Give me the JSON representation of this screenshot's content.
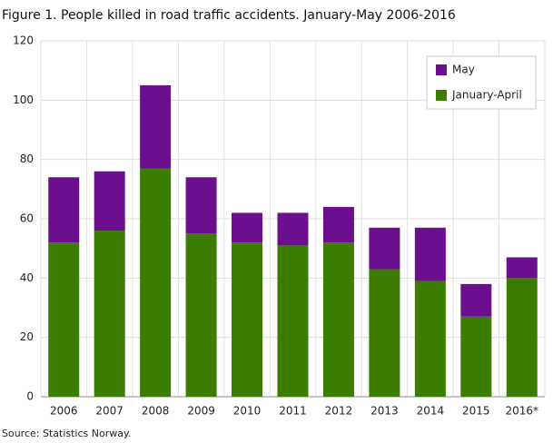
{
  "chart_data": {
    "type": "stacked-bar",
    "title": "Figure 1. People killed in road traffic accidents. January-May 2006-2016",
    "source": "Source: Statistics Norway.",
    "categories": [
      "2006",
      "2007",
      "2008",
      "2009",
      "2010",
      "2011",
      "2012",
      "2013",
      "2014",
      "2015",
      "2016*"
    ],
    "series": [
      {
        "name": "January-April",
        "color": "#3a7d00",
        "values": [
          52,
          56,
          77,
          55,
          52,
          51,
          52,
          43,
          39,
          27,
          40
        ]
      },
      {
        "name": "May",
        "color": "#6b0f8f",
        "values": [
          22,
          20,
          28,
          19,
          10,
          11,
          12,
          14,
          18,
          11,
          7
        ]
      }
    ],
    "ylim": [
      0,
      120
    ],
    "yticks": [
      0,
      20,
      40,
      60,
      80,
      100,
      120
    ],
    "grid": true,
    "legend": "top-right"
  }
}
